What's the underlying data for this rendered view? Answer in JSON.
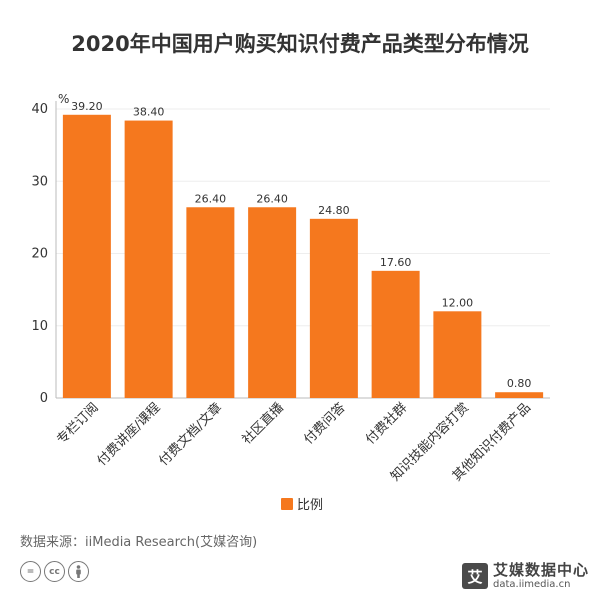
{
  "title": "2020年中国用户购买知识付费产品类型分布情况",
  "source": "数据来源：iiMedia Research(艾媒咨询)",
  "brand": {
    "logo_char": "艾",
    "name": "艾媒数据中心",
    "url": "data.iimedia.cn"
  },
  "license_icons": [
    "equals-icon",
    "cc-icon",
    "person-icon"
  ],
  "colors": {
    "bar": "#F5781E",
    "axis": "#bbbbbb",
    "grid": "#eeeeee",
    "text": "#333333"
  },
  "chart_data": {
    "type": "bar",
    "title": "2020年中国用户购买知识付费产品类型分布情况",
    "ylabel": "%",
    "ylim": [
      0,
      40
    ],
    "yticks": [
      0,
      10,
      20,
      30,
      40
    ],
    "grid": true,
    "legend_position": "bottom-center",
    "categories": [
      "专栏订阅",
      "付费讲座/课程",
      "付费文档/文章",
      "社区直播",
      "付费问答",
      "付费社群",
      "知识技能内容打赏",
      "其他知识付费产品"
    ],
    "series": [
      {
        "name": "比例",
        "values": [
          39.2,
          38.4,
          26.4,
          26.4,
          24.8,
          17.6,
          12.0,
          0.8
        ],
        "labels": [
          "39.20",
          "38.40",
          "26.40",
          "26.40",
          "24.80",
          "17.60",
          "12.00",
          "0.80"
        ]
      }
    ]
  }
}
